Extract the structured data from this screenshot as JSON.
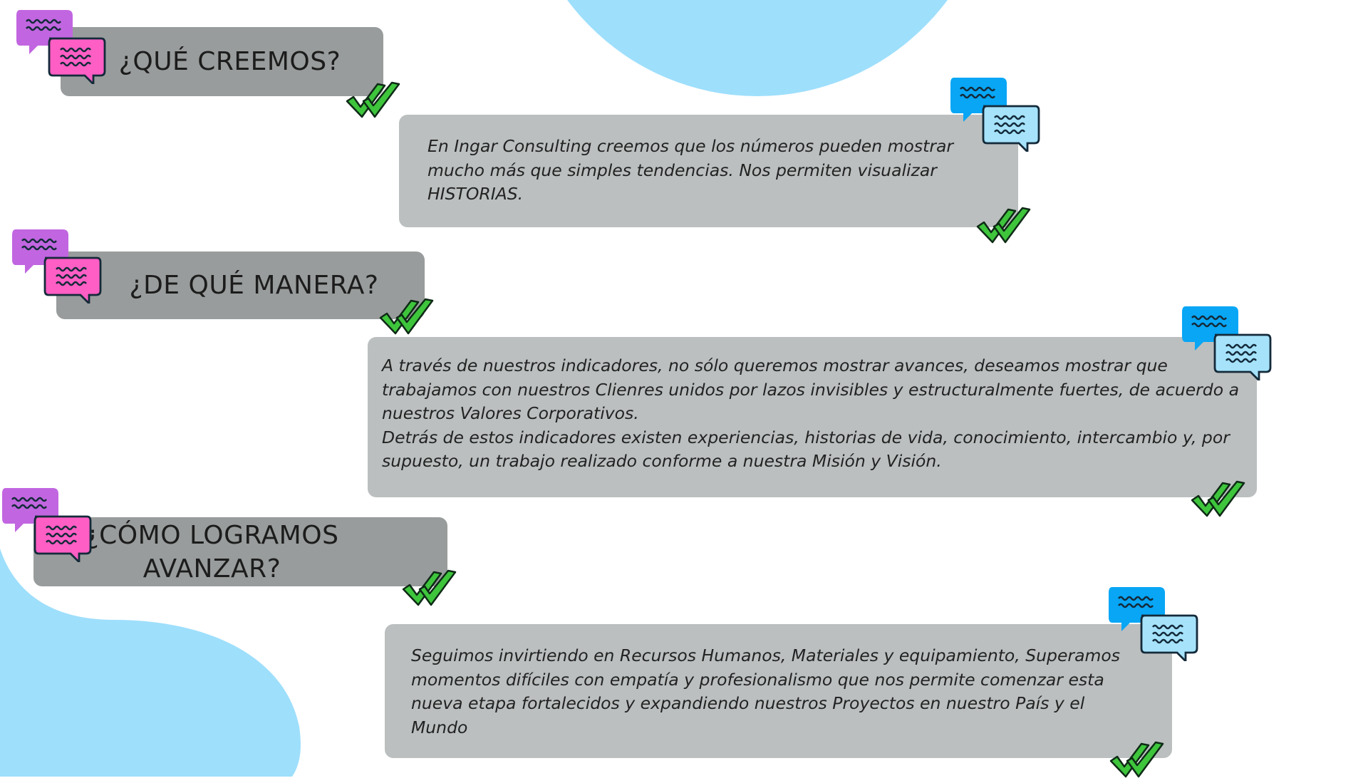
{
  "colors": {
    "background": "#ffffff",
    "blob": "#9edffc",
    "heading_bubble": "#999c9c",
    "text_bubble": "#bbbfbf",
    "chat_purple": "#c166e0",
    "chat_pink": "#ff5ec4",
    "chat_blue": "#08a6f5",
    "chat_light_blue": "#a6e3fb",
    "check_green": "#3ec53c"
  },
  "icons": {
    "heading_chat": "chat-bubbles-pink-icon",
    "text_chat": "chat-bubbles-blue-icon",
    "check": "double-check-icon"
  },
  "sections": [
    {
      "heading": "¿QUÉ CREEMOS?",
      "paragraphs": [
        "En Ingar Consulting creemos que los números pueden mostrar mucho más que simples tendencias. Nos permiten visualizar HISTORIAS."
      ]
    },
    {
      "heading": "¿DE QUÉ MANERA?",
      "paragraphs": [
        "A través de nuestros indicadores, no sólo queremos mostrar avances, deseamos mostrar que trabajamos con nuestros Clienres unidos por lazos invisibles y estructuralmente fuertes, de acuerdo a nuestros Valores Corporativos.",
        "Detrás de estos indicadores existen experiencias, historias de vida, conocimiento, intercambio y, por supuesto, un trabajo realizado conforme a nuestra Misión y Visión."
      ]
    },
    {
      "heading": "¿CÓMO LOGRAMOS AVANZAR?",
      "paragraphs": [
        "Seguimos invirtiendo en Recursos Humanos, Materiales y equipamiento, Superamos momentos difíciles con empatía y profesionalismo que nos permite comenzar esta nueva etapa fortalecidos y expandiendo nuestros Proyectos en nuestro País y el Mundo"
      ]
    }
  ]
}
